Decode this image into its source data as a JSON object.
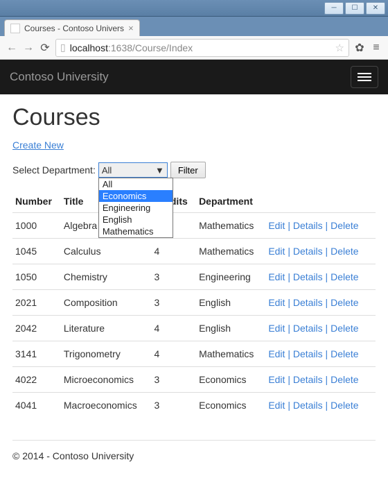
{
  "browser": {
    "tab_title": "Courses - Contoso Univers",
    "url_host": "localhost",
    "url_port_path": ":1638/Course/Index"
  },
  "navbar": {
    "brand": "Contoso University"
  },
  "page": {
    "heading": "Courses",
    "create_link": "Create New",
    "filter_label": "Select Department:",
    "select_value": "All",
    "dropdown_options": [
      "All",
      "Economics",
      "Engineering",
      "English",
      "Mathematics"
    ],
    "dropdown_highlight_index": 1,
    "filter_button": "Filter"
  },
  "table": {
    "columns": [
      "Number",
      "Title",
      "Credits",
      "Department",
      ""
    ],
    "rows": [
      [
        "1000",
        "Algebra",
        "",
        "Mathematics"
      ],
      [
        "1045",
        "Calculus",
        "4",
        "Mathematics"
      ],
      [
        "1050",
        "Chemistry",
        "3",
        "Engineering"
      ],
      [
        "2021",
        "Composition",
        "3",
        "English"
      ],
      [
        "2042",
        "Literature",
        "4",
        "English"
      ],
      [
        "3141",
        "Trigonometry",
        "4",
        "Mathematics"
      ],
      [
        "4022",
        "Microeconomics",
        "3",
        "Economics"
      ],
      [
        "4041",
        "Macroeconomics",
        "3",
        "Economics"
      ]
    ],
    "actions": {
      "edit": "Edit",
      "details": "Details",
      "delete": "Delete",
      "sep": " | "
    }
  },
  "footer": "© 2014 - Contoso University"
}
